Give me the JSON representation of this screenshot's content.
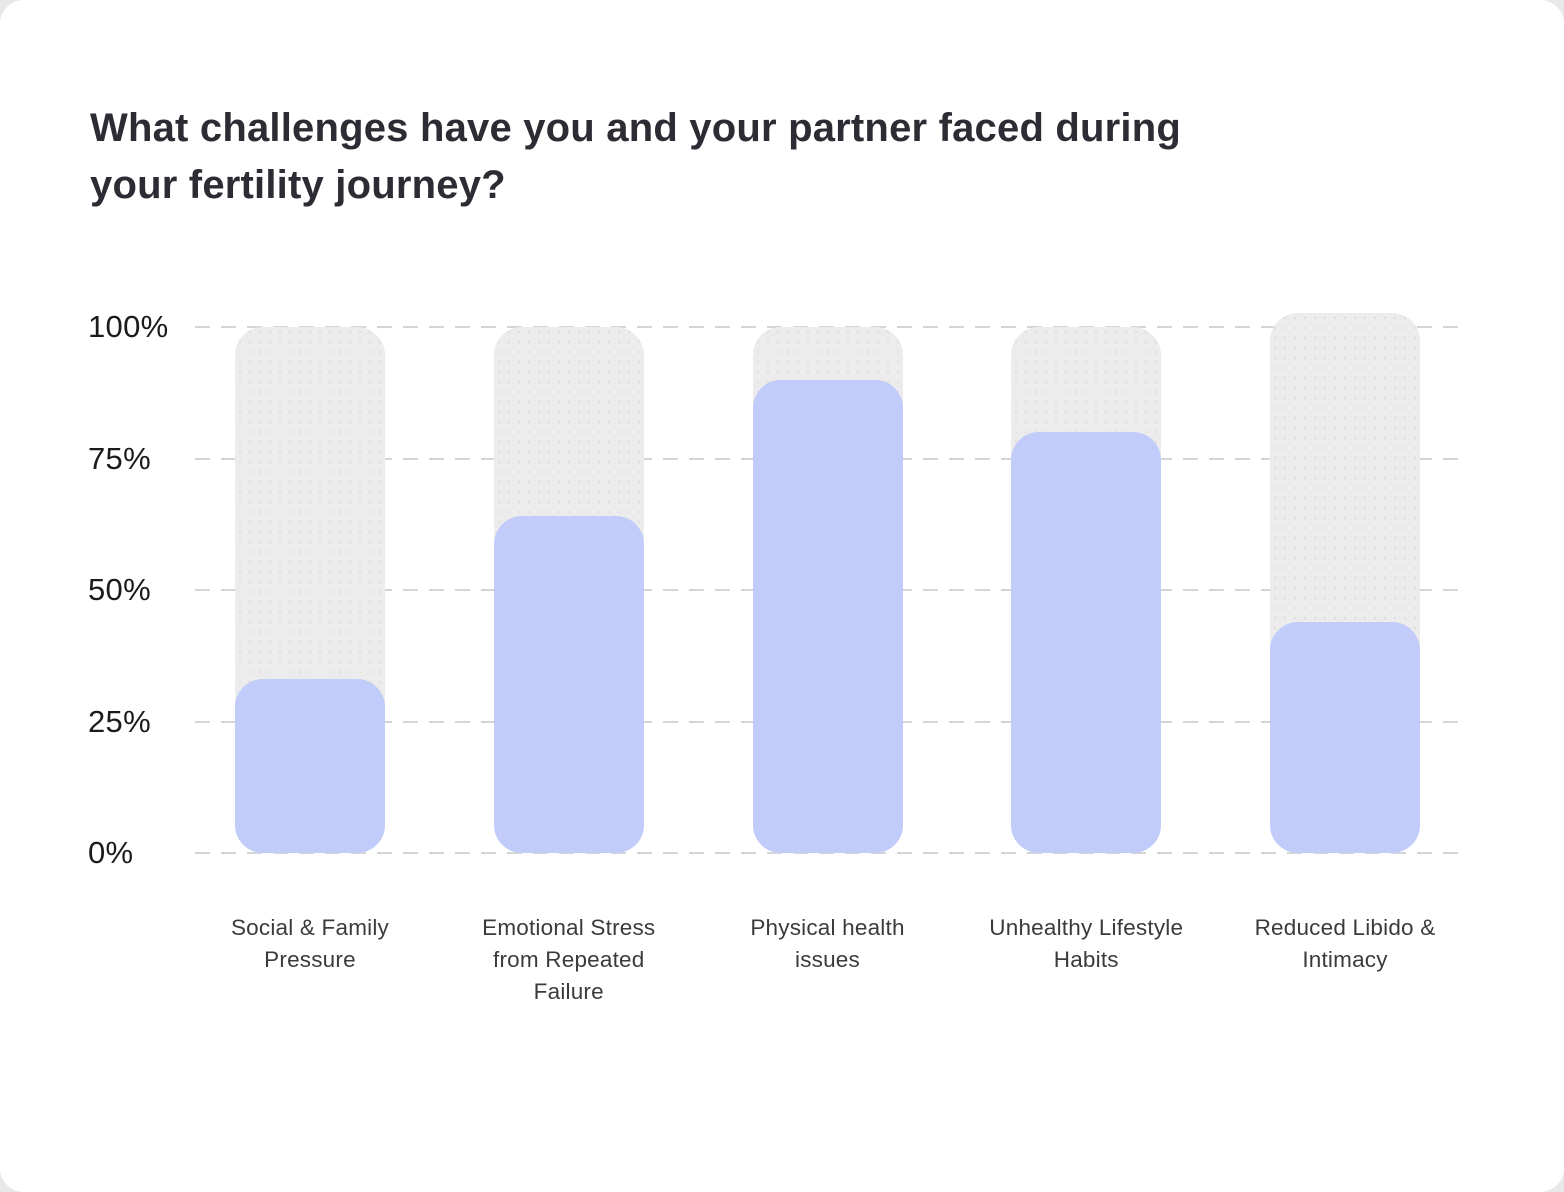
{
  "chart": {
    "title": "What challenges have you and your partner faced during\nyour fertility journey?"
  },
  "chart_data": {
    "type": "bar",
    "title": "What challenges have you and your partner faced during your fertility journey?",
    "categories": [
      "Social & Family Pressure",
      "Emotional Stress from Repeated Failure",
      "Physical health issues",
      "Unhealthy Lifestyle Habits",
      "Reduced Libido & Intimacy"
    ],
    "values": [
      33,
      64,
      90,
      80,
      44
    ],
    "unit": "%",
    "xlabel": "",
    "ylabel": "",
    "ylim": [
      0,
      100
    ],
    "yticks": [
      "100%",
      "75%",
      "50%",
      "25%",
      "0%"
    ],
    "grid": "horizontal-dashed",
    "legend": "none",
    "colors": {
      "bar_fill": "#c1ccfa",
      "bar_track": "#ececec",
      "bar_track_dots": "#dedede",
      "gridline": "#d5d5d5",
      "title_text": "#2c2c34",
      "axis_tick_text": "#1b1b1b",
      "category_text": "#3b3b3b",
      "background": "#ffffff"
    }
  }
}
